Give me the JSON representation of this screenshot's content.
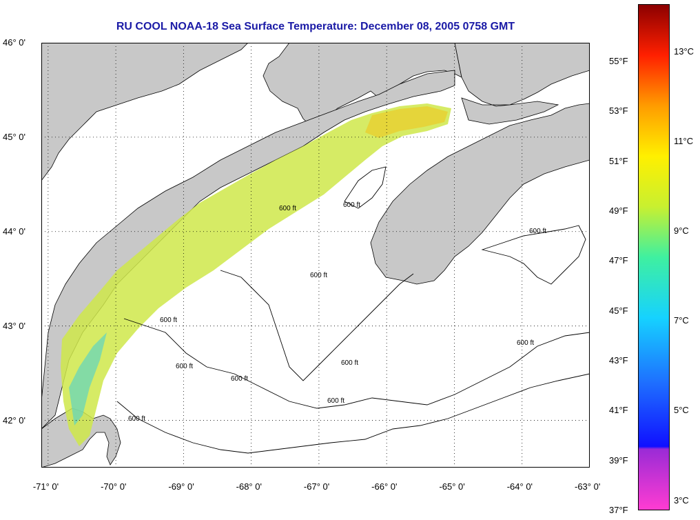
{
  "title": "RU COOL  NOAA-18  Sea Surface Temperature:  December 08, 2005 0758 GMT",
  "latitude_labels": [
    {
      "lat": 46,
      "label": "46° 0'"
    },
    {
      "lat": 45,
      "label": "45° 0'"
    },
    {
      "lat": 44,
      "label": "44° 0'"
    },
    {
      "lat": 43,
      "label": "43° 0'"
    },
    {
      "lat": 42,
      "label": "42° 0'"
    }
  ],
  "longitude_labels": [
    {
      "lon": -71,
      "label": "-71° 0'"
    },
    {
      "lon": -70,
      "label": "-70° 0'"
    },
    {
      "lon": -69,
      "label": "-69° 0'"
    },
    {
      "lon": -68,
      "label": "-68° 0'"
    },
    {
      "lon": -67,
      "label": "-67° 0'"
    },
    {
      "lon": -66,
      "label": "-66° 0'"
    },
    {
      "lon": -65,
      "label": "-65° 0'"
    },
    {
      "lon": -64,
      "label": "-64° 0'"
    },
    {
      "lon": -63,
      "label": "-63° 0'"
    }
  ],
  "map_extent": {
    "lon_min": -71.1,
    "lon_max": -63.0,
    "lat_min": 41.5,
    "lat_max": 46.0
  },
  "depth_contour_label": "600 ft",
  "colorbar": {
    "fahrenheit_labels": [
      {
        "value": 37,
        "label": "37°F"
      },
      {
        "value": 39,
        "label": "39°F"
      },
      {
        "value": 41,
        "label": "41°F"
      },
      {
        "value": 43,
        "label": "43°F"
      },
      {
        "value": 45,
        "label": "45°F"
      },
      {
        "value": 47,
        "label": "47°F"
      },
      {
        "value": 49,
        "label": "49°F"
      },
      {
        "value": 51,
        "label": "51°F"
      },
      {
        "value": 53,
        "label": "53°F"
      },
      {
        "value": 55,
        "label": "55°F"
      }
    ],
    "celsius_labels": [
      {
        "value": 3,
        "label": "3°C"
      },
      {
        "value": 5,
        "label": "5°C"
      },
      {
        "value": 7,
        "label": "7°C"
      },
      {
        "value": 9,
        "label": "9°C"
      },
      {
        "value": 11,
        "label": "11°C"
      },
      {
        "value": 13,
        "label": "13°C"
      }
    ],
    "colors": {
      "land": "#c8c8c8",
      "water": "#ffffff",
      "title": "#1a1aa6"
    }
  }
}
